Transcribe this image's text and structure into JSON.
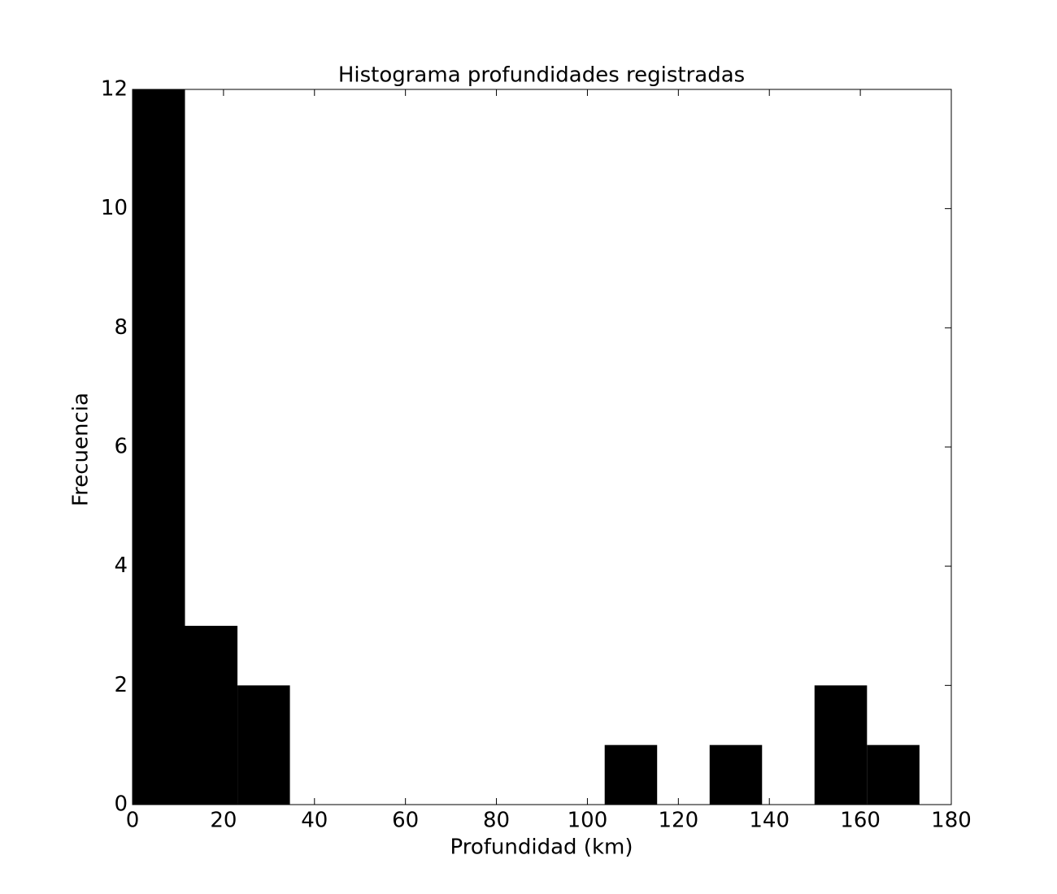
{
  "chart_data": {
    "type": "histogram",
    "title": "Histograma profundidades registradas",
    "x_label": "Profundidad (km)",
    "y_label": "Frecuencia",
    "bins": [
      0,
      11.53,
      23.07,
      34.6,
      46.13,
      57.67,
      69.2,
      80.73,
      92.27,
      103.8,
      115.33,
      126.87,
      138.4,
      149.93,
      161.47,
      173.0
    ],
    "values": [
      12,
      3,
      2,
      0,
      0,
      0,
      0,
      0,
      0,
      1,
      0,
      1,
      0,
      2,
      1
    ],
    "color": "#000000",
    "xlim": [
      0,
      180
    ],
    "xticks": [
      0,
      20,
      40,
      60,
      80,
      100,
      120,
      140,
      160,
      180
    ],
    "ylim": [
      0,
      12
    ],
    "yticks": [
      0,
      2,
      4,
      6,
      8,
      10,
      12
    ],
    "grid": false
  }
}
